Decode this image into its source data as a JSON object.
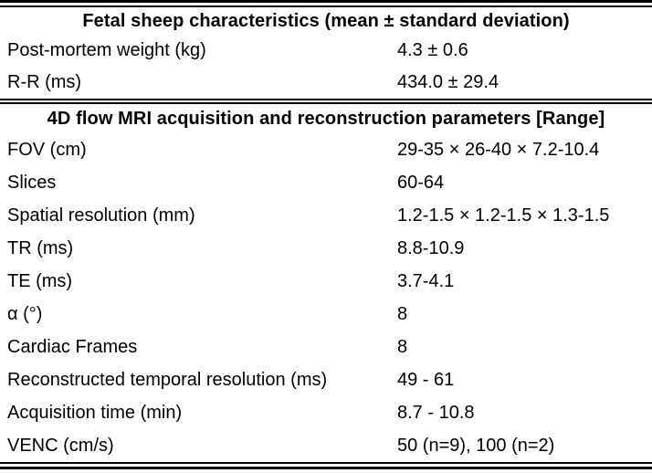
{
  "page": {
    "background_color": "#ffffff",
    "text_color": "#000000",
    "rule_color": "#000000"
  },
  "table": {
    "sections": [
      {
        "header": "Fetal sheep characteristics (mean ± standard deviation)",
        "rows": [
          {
            "label": "Post-mortem weight (kg)",
            "value": "4.3 ± 0.6"
          },
          {
            "label": "R-R (ms)",
            "value": "434.0 ± 29.4"
          }
        ]
      },
      {
        "header": "4D flow MRI acquisition and reconstruction parameters [Range]",
        "rows": [
          {
            "label": "FOV (cm)",
            "value": "29-35 × 26-40 × 7.2-10.4"
          },
          {
            "label": "Slices",
            "value": "60-64"
          },
          {
            "label": "Spatial resolution (mm)",
            "value": "1.2-1.5 × 1.2-1.5 × 1.3-1.5"
          },
          {
            "label": "TR (ms)",
            "value": "8.8-10.9"
          },
          {
            "label": "TE (ms)",
            "value": "3.7-4.1"
          },
          {
            "label": "α (°)",
            "value": "8"
          },
          {
            "label": "Cardiac Frames",
            "value": "8"
          },
          {
            "label": "Reconstructed temporal resolution (ms)",
            "value": "49 - 61"
          },
          {
            "label": "Acquisition time (min)",
            "value": "8.7 - 10.8"
          },
          {
            "label": "VENC (cm/s)",
            "value": "50 (n=9), 100 (n=2)"
          }
        ]
      }
    ]
  }
}
